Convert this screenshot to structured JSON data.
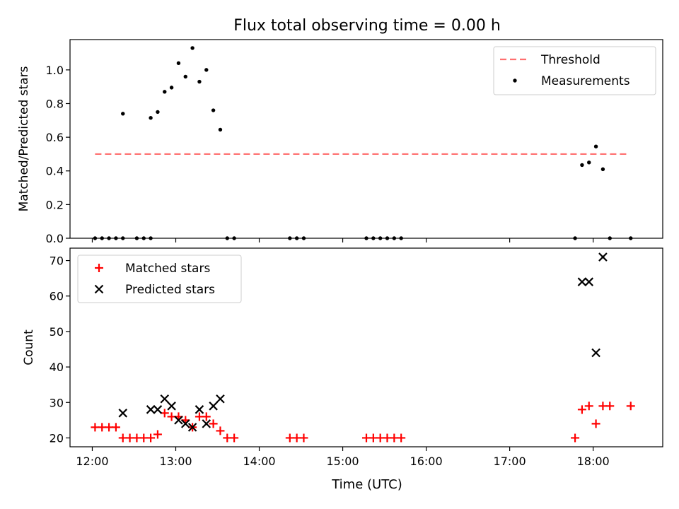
{
  "figure": {
    "title": "Flux total observing time = 0.00 h",
    "xlabel": "Time (UTC)"
  },
  "chart_data": [
    {
      "type": "scatter",
      "ylabel": "Matched/Predicted stars",
      "xlim": [
        "11:44",
        "18:50"
      ],
      "ylim": [
        0,
        1.18
      ],
      "yticks": [
        0.0,
        0.2,
        0.4,
        0.6,
        0.8,
        1.0
      ],
      "ytick_labels": [
        "0.0",
        "0.2",
        "0.4",
        "0.6",
        "0.8",
        "1.0"
      ],
      "xticks": [
        "12:00",
        "13:00",
        "14:00",
        "15:00",
        "16:00",
        "17:00",
        "18:00"
      ],
      "grid": false,
      "legend_position": "top-right",
      "threshold": {
        "name": "Threshold",
        "value": 0.5,
        "x_start": "12:02",
        "x_end": "18:26",
        "color": "#ff7070",
        "style": "dashed"
      },
      "series": [
        {
          "name": "Measurements",
          "marker": "dot",
          "color": "#000000",
          "x": [
            "12:02",
            "12:07",
            "12:12",
            "12:17",
            "12:22",
            "12:32",
            "12:37",
            "12:42",
            "12:22",
            "12:42",
            "12:47",
            "12:52",
            "12:57",
            "13:02",
            "13:07",
            "13:12",
            "13:17",
            "13:22",
            "13:27",
            "13:32",
            "13:37",
            "13:42",
            "14:22",
            "14:27",
            "14:32",
            "15:17",
            "15:22",
            "15:27",
            "15:32",
            "15:37",
            "15:42",
            "17:47",
            "17:52",
            "17:57",
            "18:02",
            "18:07",
            "18:12",
            "18:27"
          ],
          "y": [
            0,
            0,
            0,
            0,
            0.74,
            0,
            0,
            0,
            0,
            0.715,
            0.75,
            0.87,
            0.895,
            1.04,
            0.96,
            1.13,
            0.93,
            1.0,
            0.76,
            0.645,
            0,
            0,
            0,
            0,
            0,
            0,
            0,
            0,
            0,
            0,
            0,
            0,
            0.435,
            0.45,
            0.545,
            0.41,
            0,
            0
          ]
        }
      ]
    },
    {
      "type": "scatter",
      "ylabel": "Count",
      "xlim": [
        "11:44",
        "18:50"
      ],
      "ylim": [
        17.5,
        73.5
      ],
      "yticks": [
        20,
        30,
        40,
        50,
        60,
        70
      ],
      "ytick_labels": [
        "20",
        "30",
        "40",
        "50",
        "60",
        "70"
      ],
      "xticks": [
        "12:00",
        "13:00",
        "14:00",
        "15:00",
        "16:00",
        "17:00",
        "18:00"
      ],
      "xtick_labels": [
        "12:00",
        "13:00",
        "14:00",
        "15:00",
        "16:00",
        "17:00",
        "18:00"
      ],
      "grid": false,
      "legend_position": "top-left",
      "series": [
        {
          "name": "Matched stars",
          "marker": "plus",
          "color": "#ff0000",
          "x": [
            "12:02",
            "12:07",
            "12:12",
            "12:17",
            "12:22",
            "12:27",
            "12:32",
            "12:37",
            "12:42",
            "12:47",
            "12:52",
            "12:57",
            "13:02",
            "13:07",
            "13:12",
            "13:17",
            "13:22",
            "13:27",
            "13:32",
            "13:37",
            "13:42",
            "14:22",
            "14:27",
            "14:32",
            "15:17",
            "15:22",
            "15:27",
            "15:32",
            "15:37",
            "15:42",
            "17:47",
            "17:52",
            "17:57",
            "18:02",
            "18:07",
            "18:12",
            "18:27"
          ],
          "y": [
            23,
            23,
            23,
            23,
            20,
            20,
            20,
            20,
            20,
            21,
            27,
            26,
            26,
            25,
            23,
            26,
            26,
            24,
            22,
            20,
            20,
            20,
            20,
            20,
            20,
            20,
            20,
            20,
            20,
            20,
            20,
            28,
            29,
            24,
            29,
            29,
            29
          ]
        },
        {
          "name": "Predicted stars",
          "marker": "x",
          "color": "#000000",
          "x": [
            "12:22",
            "12:42",
            "12:47",
            "12:52",
            "12:57",
            "13:02",
            "13:07",
            "13:12",
            "13:17",
            "13:22",
            "13:27",
            "13:32",
            "17:52",
            "17:57",
            "18:02",
            "18:07"
          ],
          "y": [
            27,
            28,
            28,
            31,
            29,
            25,
            24,
            23,
            28,
            24,
            29,
            31,
            64,
            64,
            44,
            71
          ]
        }
      ]
    }
  ]
}
